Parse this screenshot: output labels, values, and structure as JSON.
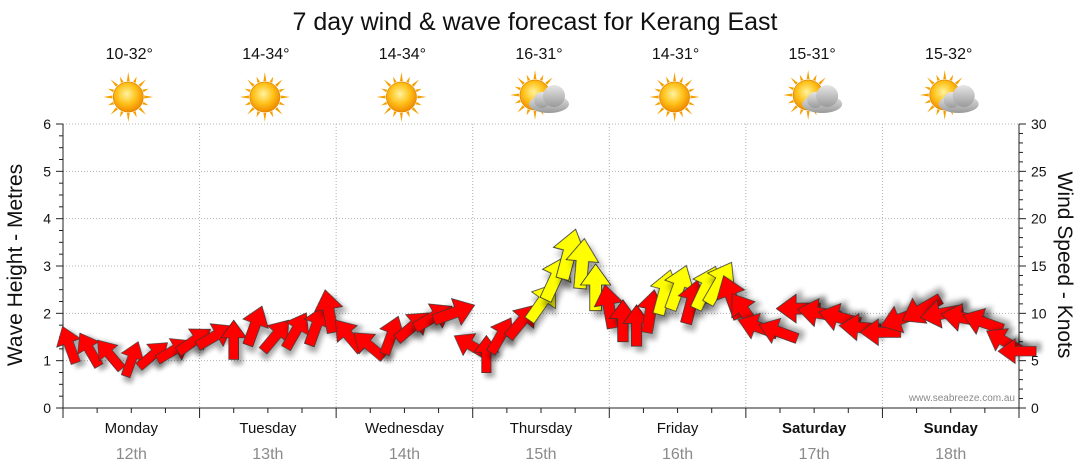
{
  "chart_data": {
    "type": "line",
    "title": "7 day wind & wave forecast for Kerang East",
    "y_left_label": "Wave Height - Metres",
    "y_right_label": "Wind Speed - Knots",
    "y_left_ticks": [
      "0",
      "1",
      "2",
      "3",
      "4",
      "5",
      "6"
    ],
    "y_right_ticks": [
      "0",
      "5",
      "10",
      "15",
      "20",
      "25",
      "30"
    ],
    "y_left_range": [
      0,
      6
    ],
    "y_right_range": [
      0,
      30
    ],
    "grid": true,
    "watermark": "www.seabreeze.com.au",
    "days": [
      {
        "day": "Monday",
        "date": "12th",
        "temp": "10-32°",
        "icon": "sun-icon",
        "bold": false
      },
      {
        "day": "Tuesday",
        "date": "13th",
        "temp": "14-34°",
        "icon": "sun-icon",
        "bold": false
      },
      {
        "day": "Wednesday",
        "date": "14th",
        "temp": "14-34°",
        "icon": "sun-icon",
        "bold": false
      },
      {
        "day": "Thursday",
        "date": "15th",
        "temp": "16-31°",
        "icon": "sun-cloud-icon",
        "bold": false
      },
      {
        "day": "Friday",
        "date": "16th",
        "temp": "14-31°",
        "icon": "sun-icon",
        "bold": false
      },
      {
        "day": "Saturday",
        "date": "17th",
        "temp": "15-31°",
        "icon": "sun-cloud-icon",
        "bold": true
      },
      {
        "day": "Sunday",
        "date": "18th",
        "temp": "15-32°",
        "icon": "sun-cloud-icon",
        "bold": true
      }
    ],
    "wind_series": {
      "name": "Wind Speed",
      "colors": {
        "normal": "#ff0000",
        "highlight": "#ffff00",
        "outline": "#333333"
      },
      "points": [
        {
          "t": 0.05,
          "knots": 6.5,
          "dir": 160,
          "color": "normal"
        },
        {
          "t": 0.2,
          "knots": 6.0,
          "dir": 150,
          "color": "normal"
        },
        {
          "t": 0.35,
          "knots": 5.5,
          "dir": 140,
          "color": "normal"
        },
        {
          "t": 0.5,
          "knots": 5.0,
          "dir": 200,
          "color": "normal"
        },
        {
          "t": 0.65,
          "knots": 5.5,
          "dir": 230,
          "color": "normal"
        },
        {
          "t": 0.8,
          "knots": 6.0,
          "dir": 240,
          "color": "normal"
        },
        {
          "t": 0.95,
          "knots": 7.0,
          "dir": 235,
          "color": "normal"
        },
        {
          "t": 1.1,
          "knots": 7.5,
          "dir": 240,
          "color": "normal"
        },
        {
          "t": 1.25,
          "knots": 7.0,
          "dir": 180,
          "color": "normal"
        },
        {
          "t": 1.4,
          "knots": 8.5,
          "dir": 200,
          "color": "normal"
        },
        {
          "t": 1.55,
          "knots": 7.5,
          "dir": 220,
          "color": "normal"
        },
        {
          "t": 1.7,
          "knots": 8.0,
          "dir": 210,
          "color": "normal"
        },
        {
          "t": 1.85,
          "knots": 8.5,
          "dir": 200,
          "color": "normal"
        },
        {
          "t": 1.95,
          "knots": 10.0,
          "dir": 170,
          "color": "normal"
        },
        {
          "t": 2.1,
          "knots": 7.5,
          "dir": 140,
          "color": "normal"
        },
        {
          "t": 2.25,
          "knots": 6.5,
          "dir": 130,
          "color": "normal"
        },
        {
          "t": 2.4,
          "knots": 7.5,
          "dir": 200,
          "color": "normal"
        },
        {
          "t": 2.55,
          "knots": 8.5,
          "dir": 230,
          "color": "normal"
        },
        {
          "t": 2.7,
          "knots": 9.5,
          "dir": 240,
          "color": "normal"
        },
        {
          "t": 2.85,
          "knots": 10.0,
          "dir": 250,
          "color": "normal"
        },
        {
          "t": 3.0,
          "knots": 6.5,
          "dir": 120,
          "color": "normal"
        },
        {
          "t": 3.1,
          "knots": 5.5,
          "dir": 180,
          "color": "normal"
        },
        {
          "t": 3.2,
          "knots": 7.5,
          "dir": 210,
          "color": "normal"
        },
        {
          "t": 3.35,
          "knots": 9.0,
          "dir": 220,
          "color": "normal"
        },
        {
          "t": 3.5,
          "knots": 11.0,
          "dir": 215,
          "color": "highlight"
        },
        {
          "t": 3.6,
          "knots": 13.5,
          "dir": 205,
          "color": "highlight"
        },
        {
          "t": 3.7,
          "knots": 16.0,
          "dir": 195,
          "color": "highlight"
        },
        {
          "t": 3.8,
          "knots": 15.0,
          "dir": 185,
          "color": "highlight"
        },
        {
          "t": 3.9,
          "knots": 12.5,
          "dir": 180,
          "color": "highlight"
        },
        {
          "t": 4.0,
          "knots": 10.5,
          "dir": 170,
          "color": "normal"
        },
        {
          "t": 4.1,
          "knots": 9.0,
          "dir": 180,
          "color": "normal"
        },
        {
          "t": 4.2,
          "knots": 8.5,
          "dir": 180,
          "color": "normal"
        },
        {
          "t": 4.3,
          "knots": 10.0,
          "dir": 190,
          "color": "normal"
        },
        {
          "t": 4.4,
          "knots": 12.0,
          "dir": 195,
          "color": "highlight"
        },
        {
          "t": 4.5,
          "knots": 12.5,
          "dir": 200,
          "color": "highlight"
        },
        {
          "t": 4.6,
          "knots": 11.0,
          "dir": 195,
          "color": "normal"
        },
        {
          "t": 4.7,
          "knots": 12.5,
          "dir": 205,
          "color": "highlight"
        },
        {
          "t": 4.8,
          "knots": 13.0,
          "dir": 210,
          "color": "highlight"
        },
        {
          "t": 4.9,
          "knots": 11.5,
          "dir": 160,
          "color": "normal"
        },
        {
          "t": 5.0,
          "knots": 10.0,
          "dir": 145,
          "color": "normal"
        },
        {
          "t": 5.1,
          "knots": 8.5,
          "dir": 110,
          "color": "normal"
        },
        {
          "t": 5.25,
          "knots": 8.0,
          "dir": 110,
          "color": "normal"
        },
        {
          "t": 5.4,
          "knots": 10.5,
          "dir": 90,
          "color": "normal"
        },
        {
          "t": 5.55,
          "knots": 10.0,
          "dir": 100,
          "color": "normal"
        },
        {
          "t": 5.7,
          "knots": 9.5,
          "dir": 105,
          "color": "normal"
        },
        {
          "t": 5.85,
          "knots": 8.5,
          "dir": 95,
          "color": "normal"
        },
        {
          "t": 6.0,
          "knots": 8.0,
          "dir": 90,
          "color": "normal"
        },
        {
          "t": 6.15,
          "knots": 9.5,
          "dir": 70,
          "color": "normal"
        },
        {
          "t": 6.3,
          "knots": 10.5,
          "dir": 60,
          "color": "normal"
        },
        {
          "t": 6.45,
          "knots": 10.0,
          "dir": 80,
          "color": "normal"
        },
        {
          "t": 6.6,
          "knots": 9.5,
          "dir": 100,
          "color": "normal"
        },
        {
          "t": 6.75,
          "knots": 9.0,
          "dir": 110,
          "color": "normal"
        },
        {
          "t": 6.9,
          "knots": 7.0,
          "dir": 120,
          "color": "normal"
        },
        {
          "t": 7.0,
          "knots": 6.0,
          "dir": 90,
          "color": "normal"
        }
      ]
    }
  }
}
